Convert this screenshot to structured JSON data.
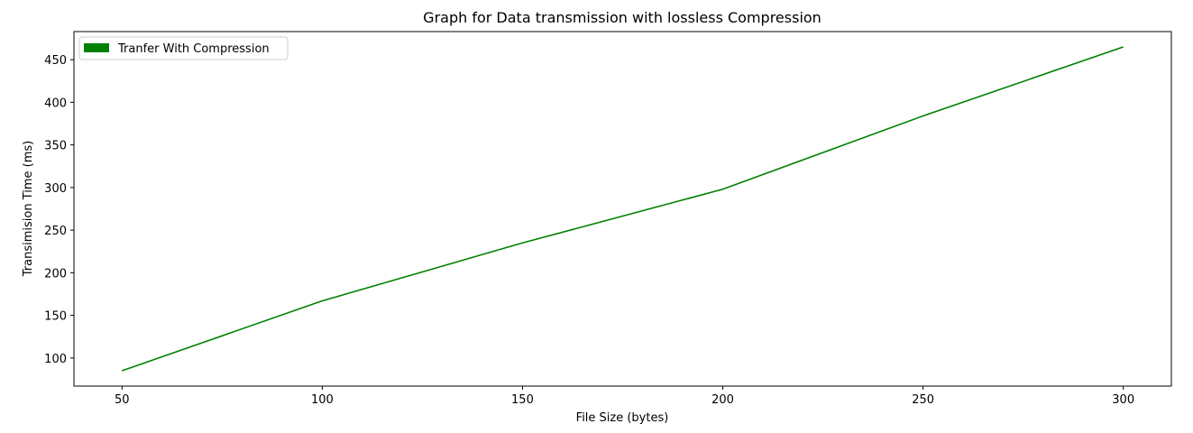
{
  "chart_data": {
    "type": "line",
    "title": "Graph for Data transmission with lossless Compression",
    "xlabel": "File Size (bytes)",
    "ylabel": "Transimision Time (ms)",
    "x": [
      50,
      100,
      150,
      200,
      250,
      300
    ],
    "xticks": [
      50,
      100,
      150,
      200,
      250,
      300
    ],
    "yticks": [
      100,
      150,
      200,
      250,
      300,
      350,
      400,
      450
    ],
    "xlim": [
      38,
      312
    ],
    "ylim": [
      67,
      483
    ],
    "grid": false,
    "legend_position": "upper-left",
    "series": [
      {
        "name": "Tranfer With Compression",
        "color": "#008000",
        "values": [
          85,
          167,
          235,
          298,
          384,
          465
        ]
      }
    ]
  }
}
